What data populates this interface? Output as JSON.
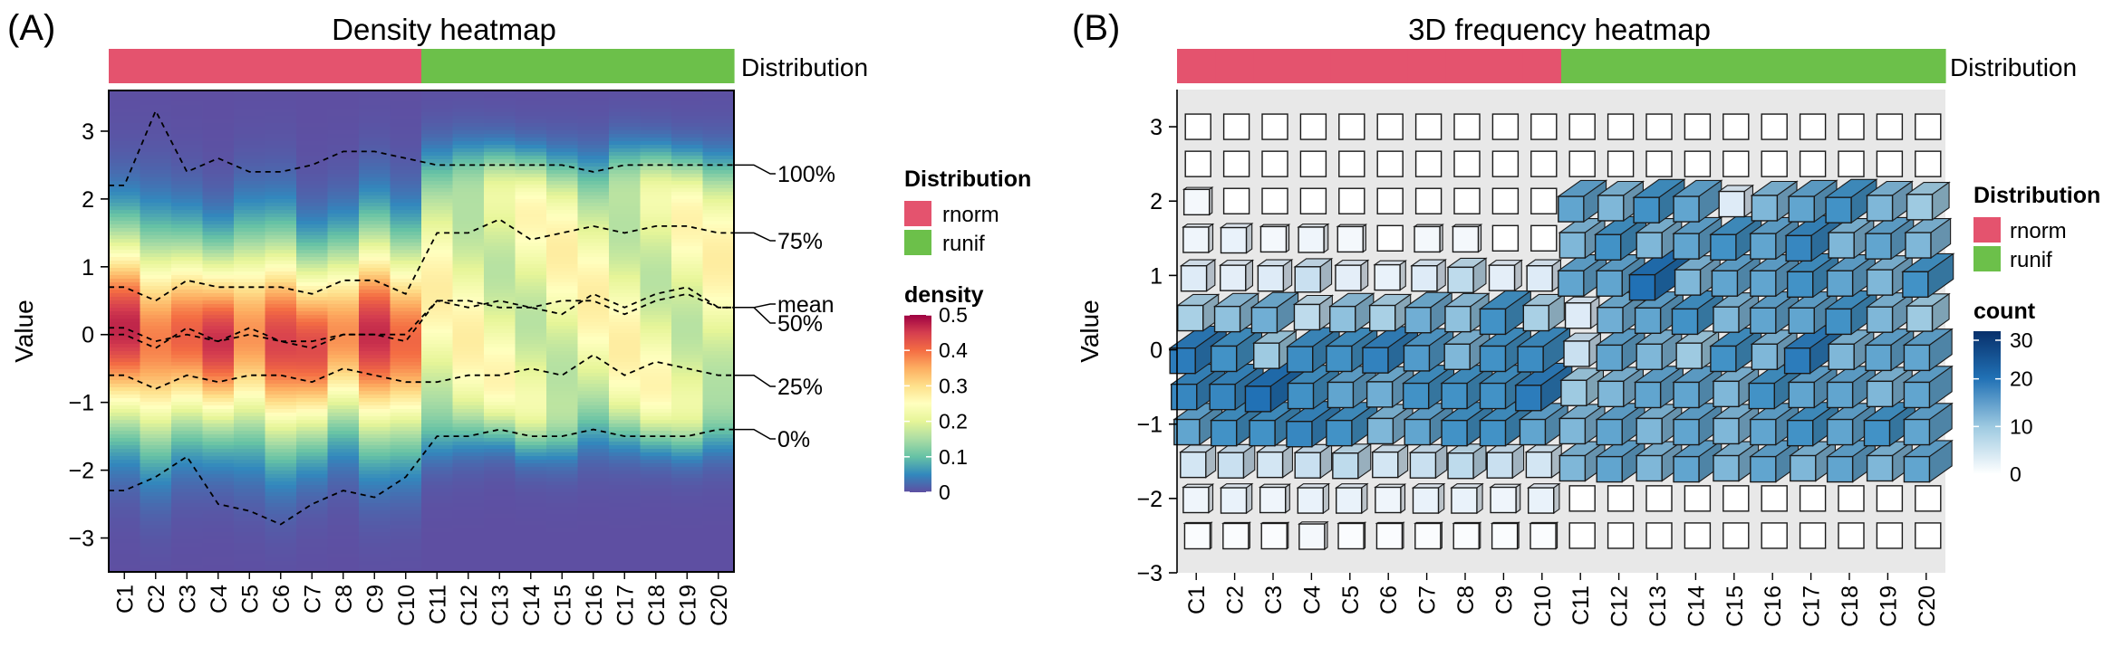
{
  "chart_data": [
    {
      "panel_label": "(A)",
      "type": "heatmap",
      "title": "Density heatmap",
      "ylabel": "Value",
      "ylim": [
        -3.5,
        3.6
      ],
      "y_ticks": [
        -3,
        -2,
        -1,
        0,
        1,
        2,
        3
      ],
      "categories": [
        "C1",
        "C2",
        "C3",
        "C4",
        "C5",
        "C6",
        "C7",
        "C8",
        "C9",
        "C10",
        "C11",
        "C12",
        "C13",
        "C14",
        "C15",
        "C16",
        "C17",
        "C18",
        "C19",
        "C20"
      ],
      "annotation_title": "Distribution",
      "column_groups": [
        "rnorm",
        "rnorm",
        "rnorm",
        "rnorm",
        "rnorm",
        "rnorm",
        "rnorm",
        "rnorm",
        "rnorm",
        "rnorm",
        "runif",
        "runif",
        "runif",
        "runif",
        "runif",
        "runif",
        "runif",
        "runif",
        "runif",
        "runif"
      ],
      "group_colors": {
        "rnorm": "#E4536E",
        "runif": "#6CC04A"
      },
      "legend": {
        "distribution_title": "Distribution",
        "distribution_items": [
          {
            "label": "rnorm",
            "color": "#E4536E"
          },
          {
            "label": "runif",
            "color": "#6CC04A"
          }
        ],
        "density_title": "density",
        "density_ticks": [
          "0.5",
          "0.4",
          "0.3",
          "0.2",
          "0.1",
          "0"
        ],
        "density_values": [
          0.5,
          0.4,
          0.3,
          0.2,
          0.1,
          0
        ]
      },
      "quantile_lines": [
        {
          "name": "100%",
          "label": "100%",
          "values": [
            2.2,
            3.3,
            2.4,
            2.6,
            2.4,
            2.4,
            2.5,
            2.7,
            2.7,
            2.6,
            2.5,
            2.5,
            2.5,
            2.5,
            2.5,
            2.4,
            2.5,
            2.5,
            2.5,
            2.5
          ]
        },
        {
          "name": "75%",
          "label": "75%",
          "values": [
            0.7,
            0.5,
            0.8,
            0.7,
            0.7,
            0.7,
            0.6,
            0.8,
            0.8,
            0.6,
            1.5,
            1.5,
            1.7,
            1.4,
            1.5,
            1.6,
            1.5,
            1.6,
            1.6,
            1.5
          ]
        },
        {
          "name": "mean",
          "label": "mean",
          "values": [
            0.1,
            -0.1,
            0.0,
            -0.1,
            0.0,
            -0.1,
            -0.2,
            0.0,
            0.0,
            -0.1,
            0.5,
            0.5,
            0.4,
            0.4,
            0.5,
            0.5,
            0.3,
            0.5,
            0.6,
            0.4
          ]
        },
        {
          "name": "50%",
          "label": "50%",
          "values": [
            0.0,
            -0.2,
            0.1,
            -0.1,
            0.1,
            -0.1,
            -0.1,
            0.0,
            0.0,
            0.0,
            0.5,
            0.4,
            0.5,
            0.4,
            0.3,
            0.6,
            0.4,
            0.6,
            0.7,
            0.4
          ]
        },
        {
          "name": "25%",
          "label": "25%",
          "values": [
            -0.6,
            -0.8,
            -0.6,
            -0.7,
            -0.6,
            -0.6,
            -0.7,
            -0.5,
            -0.6,
            -0.7,
            -0.7,
            -0.6,
            -0.6,
            -0.5,
            -0.6,
            -0.3,
            -0.6,
            -0.4,
            -0.5,
            -0.6
          ]
        },
        {
          "name": "0%",
          "label": "0%",
          "values": [
            -2.3,
            -2.1,
            -1.8,
            -2.5,
            -2.6,
            -2.8,
            -2.5,
            -2.3,
            -2.4,
            -2.1,
            -1.5,
            -1.5,
            -1.4,
            -1.5,
            -1.5,
            -1.4,
            -1.5,
            -1.5,
            -1.5,
            -1.4
          ]
        }
      ]
    },
    {
      "panel_label": "(B)",
      "type": "heatmap",
      "title": "3D frequency heatmap",
      "ylabel": "Value",
      "ylim": [
        -3,
        3.5
      ],
      "y_ticks": [
        -3,
        -2,
        -1,
        0,
        1,
        2,
        3
      ],
      "y_bins": [
        3.0,
        2.5,
        2.0,
        1.5,
        1.0,
        0.5,
        0.0,
        -0.5,
        -1.0,
        -1.5,
        -2.0,
        -2.5
      ],
      "categories": [
        "C1",
        "C2",
        "C3",
        "C4",
        "C5",
        "C6",
        "C7",
        "C8",
        "C9",
        "C10",
        "C11",
        "C12",
        "C13",
        "C14",
        "C15",
        "C16",
        "C17",
        "C18",
        "C19",
        "C20"
      ],
      "annotation_title": "Distribution",
      "column_groups": [
        "rnorm",
        "rnorm",
        "rnorm",
        "rnorm",
        "rnorm",
        "rnorm",
        "rnorm",
        "rnorm",
        "rnorm",
        "rnorm",
        "runif",
        "runif",
        "runif",
        "runif",
        "runif",
        "runif",
        "runif",
        "runif",
        "runif",
        "runif"
      ],
      "group_colors": {
        "rnorm": "#E4536E",
        "runif": "#6CC04A"
      },
      "legend": {
        "distribution_title": "Distribution",
        "distribution_items": [
          {
            "label": "rnorm",
            "color": "#E4536E"
          },
          {
            "label": "runif",
            "color": "#6CC04A"
          }
        ],
        "count_title": "count",
        "count_ticks": [
          "30",
          "20",
          "10",
          "0"
        ],
        "count_values": [
          30,
          20,
          10,
          0
        ]
      },
      "counts": [
        [
          0,
          0,
          0,
          0,
          0,
          0,
          0,
          0,
          0,
          0,
          0,
          0,
          0,
          0,
          0,
          0,
          0,
          0,
          0,
          0
        ],
        [
          0,
          0,
          0,
          0,
          0,
          0,
          0,
          0,
          0,
          0,
          0,
          0,
          0,
          0,
          0,
          0,
          0,
          0,
          0,
          0
        ],
        [
          2,
          0,
          0,
          0,
          0,
          0,
          0,
          0,
          0,
          0,
          16,
          14,
          18,
          16,
          6,
          14,
          16,
          18,
          14,
          12
        ],
        [
          3,
          4,
          2,
          3,
          2,
          0,
          2,
          2,
          0,
          0,
          14,
          18,
          14,
          16,
          18,
          16,
          20,
          14,
          16,
          14
        ],
        [
          6,
          5,
          6,
          8,
          5,
          4,
          6,
          9,
          5,
          6,
          16,
          16,
          24,
          14,
          16,
          16,
          18,
          16,
          14,
          18
        ],
        [
          11,
          13,
          15,
          9,
          13,
          11,
          15,
          13,
          18,
          11,
          6,
          15,
          16,
          18,
          14,
          16,
          16,
          18,
          14,
          12
        ],
        [
          22,
          18,
          12,
          19,
          18,
          21,
          17,
          14,
          18,
          19,
          8,
          16,
          14,
          12,
          18,
          14,
          22,
          14,
          16,
          16
        ],
        [
          20,
          20,
          24,
          18,
          16,
          15,
          18,
          18,
          18,
          22,
          12,
          14,
          16,
          16,
          14,
          18,
          16,
          16,
          14,
          16
        ],
        [
          16,
          18,
          18,
          20,
          18,
          14,
          16,
          18,
          18,
          16,
          14,
          16,
          14,
          16,
          14,
          16,
          18,
          16,
          18,
          16
        ],
        [
          7,
          8,
          7,
          8,
          9,
          7,
          8,
          9,
          8,
          7,
          14,
          16,
          14,
          16,
          14,
          16,
          14,
          16,
          14,
          16
        ],
        [
          3,
          4,
          3,
          4,
          4,
          3,
          4,
          4,
          3,
          4,
          0,
          0,
          0,
          0,
          0,
          0,
          0,
          0,
          0,
          0
        ],
        [
          1,
          1,
          1,
          2,
          1,
          1,
          1,
          1,
          1,
          1,
          0,
          0,
          0,
          0,
          0,
          0,
          0,
          0,
          0,
          0
        ]
      ]
    }
  ]
}
